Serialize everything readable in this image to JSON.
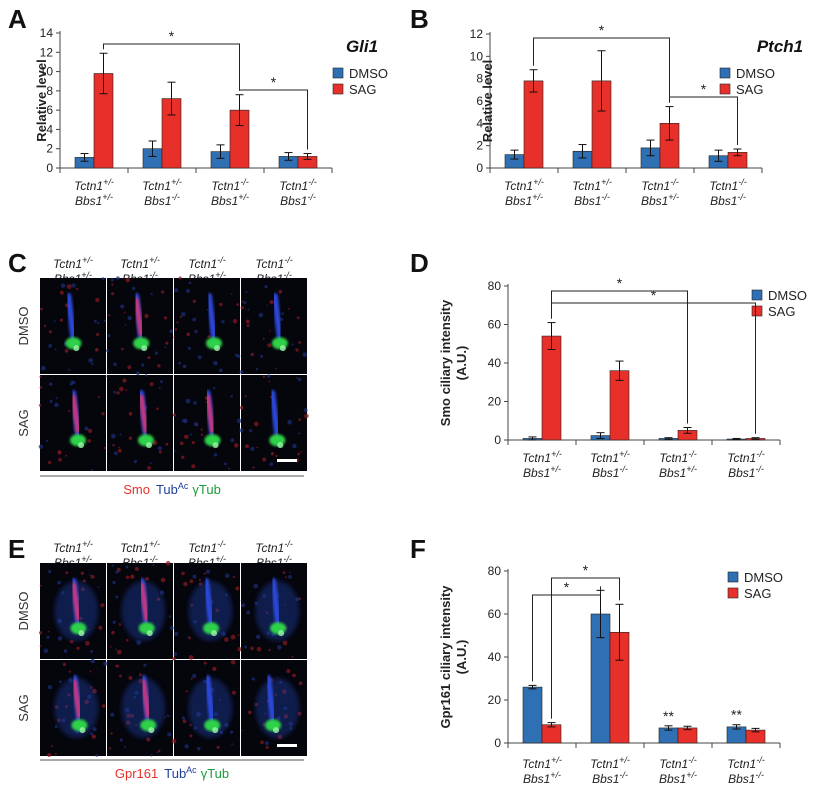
{
  "panel_labels": [
    "A",
    "B",
    "C",
    "D",
    "E",
    "F"
  ],
  "genotypes": [
    {
      "l1": "Tctn1",
      "s1": "+/-",
      "l2": "Bbs1",
      "s2": "+/-"
    },
    {
      "l1": "Tctn1",
      "s1": "+/-",
      "l2": "Bbs1",
      "s2": "-/-"
    },
    {
      "l1": "Tctn1",
      "s1": "-/-",
      "l2": "Bbs1",
      "s2": "+/-"
    },
    {
      "l1": "Tctn1",
      "s1": "-/-",
      "l2": "Bbs1",
      "s2": "-/-"
    }
  ],
  "legend": [
    "DMSO",
    "SAG"
  ],
  "colors": {
    "dmso": "#2f6fb4",
    "sag": "#e8302a"
  },
  "image_rows": [
    "DMSO",
    "SAG"
  ],
  "caption_C": {
    "smo": "Smo",
    "tub": "Tub",
    "tub_sup": "Ac",
    "gtub": "γTub"
  },
  "caption_E": {
    "gpr": "Gpr161",
    "tub": "Tub",
    "tub_sup": "Ac",
    "gtub": "γTub"
  },
  "chart_data": [
    {
      "panel": "A",
      "type": "bar",
      "title": "Gli1",
      "ylabel": "Relative level",
      "ylim": [
        0,
        14
      ],
      "yticks": [
        0,
        2,
        4,
        6,
        8,
        10,
        12,
        14
      ],
      "series": [
        {
          "name": "DMSO",
          "values": [
            1.1,
            2.0,
            1.7,
            1.2
          ],
          "err": [
            0.4,
            0.8,
            0.7,
            0.4
          ]
        },
        {
          "name": "SAG",
          "values": [
            9.8,
            7.2,
            6.0,
            1.2
          ],
          "err": [
            2.1,
            1.7,
            1.6,
            0.3
          ]
        }
      ],
      "significance": [
        {
          "from": [
            0,
            1
          ],
          "to": [
            2,
            1
          ],
          "label": "*"
        },
        {
          "from": [
            2,
            1
          ],
          "to": [
            3,
            1
          ],
          "label": "*"
        }
      ]
    },
    {
      "panel": "B",
      "type": "bar",
      "title": "Ptch1",
      "ylabel": "Relative level",
      "ylim": [
        0,
        12
      ],
      "yticks": [
        0,
        2,
        4,
        6,
        8,
        10,
        12
      ],
      "series": [
        {
          "name": "DMSO",
          "values": [
            1.2,
            1.5,
            1.8,
            1.1
          ],
          "err": [
            0.4,
            0.6,
            0.7,
            0.5
          ]
        },
        {
          "name": "SAG",
          "values": [
            7.8,
            7.8,
            4.0,
            1.4
          ],
          "err": [
            1.0,
            2.7,
            1.5,
            0.3
          ]
        }
      ],
      "significance": [
        {
          "from": [
            0,
            1
          ],
          "to": [
            2,
            1
          ],
          "label": "*"
        },
        {
          "from": [
            2,
            1
          ],
          "to": [
            3,
            1
          ],
          "label": "*"
        }
      ]
    },
    {
      "panel": "D",
      "type": "bar",
      "title": "",
      "ylabel": "Smo ciliary intensity (A.U.)",
      "ylim": [
        0,
        80
      ],
      "yticks": [
        0,
        20,
        40,
        60,
        80
      ],
      "series": [
        {
          "name": "DMSO",
          "values": [
            0.8,
            2.3,
            0.8,
            0.5
          ],
          "err": [
            0.8,
            1.5,
            0.4,
            0.3
          ]
        },
        {
          "name": "SAG",
          "values": [
            54,
            36,
            5,
            0.8
          ],
          "err": [
            7,
            5,
            1.5,
            0.4
          ]
        }
      ],
      "significance": [
        {
          "from": [
            0,
            1
          ],
          "to": [
            2,
            1
          ],
          "label": "*"
        },
        {
          "from": [
            0,
            1
          ],
          "to": [
            3,
            1
          ],
          "label": "*"
        }
      ]
    },
    {
      "panel": "F",
      "type": "bar",
      "title": "",
      "ylabel": "Gpr161 ciliary intensity (A.U.)",
      "ylim": [
        0,
        80
      ],
      "yticks": [
        0,
        20,
        40,
        60,
        80
      ],
      "series": [
        {
          "name": "DMSO",
          "values": [
            26,
            60,
            7,
            7.5
          ],
          "err": [
            0.8,
            11,
            1,
            1
          ]
        },
        {
          "name": "SAG",
          "values": [
            8.5,
            51.5,
            7,
            6
          ],
          "err": [
            1,
            13,
            0.8,
            0.8
          ]
        }
      ],
      "significance": [
        {
          "from": [
            0,
            0
          ],
          "to": [
            1,
            0
          ],
          "label": "*"
        },
        {
          "from": [
            0,
            1
          ],
          "to": [
            1,
            1
          ],
          "label": "*"
        }
      ],
      "annotations": [
        {
          "group": 2,
          "label": "**"
        },
        {
          "group": 3,
          "label": "**"
        }
      ]
    }
  ]
}
